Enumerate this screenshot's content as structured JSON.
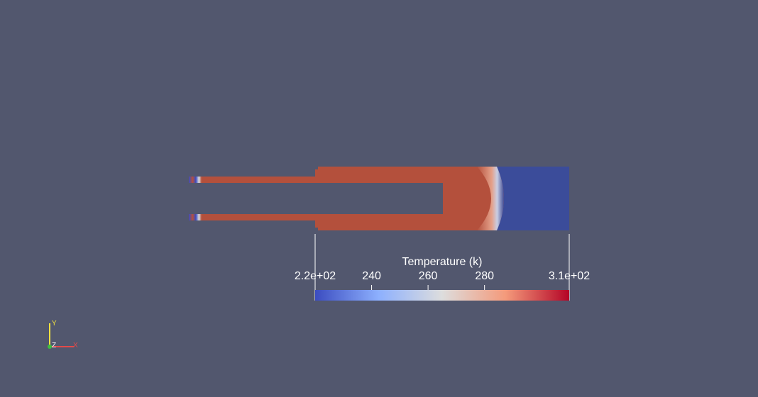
{
  "viewport": {
    "background": "#52576e"
  },
  "model": {
    "hot_color": "#b4503c",
    "cold_color": "#3b4c9a",
    "field": "Temperature (k)"
  },
  "colorbar": {
    "title": "Temperature (k)",
    "min_label": "2.2e+02",
    "max_label": "3.1e+02",
    "tick_labels": [
      "240",
      "260",
      "280"
    ],
    "range": [
      220,
      310
    ],
    "tick_values": [
      240,
      260,
      280
    ],
    "colors": [
      "#3b4cc0",
      "#8db0fe",
      "#dddddd",
      "#f49a7b",
      "#b40426"
    ]
  },
  "orientation_axes": {
    "x_label": "X",
    "y_label": "Y",
    "z_label": "Z",
    "x_color": "#e34a4a",
    "y_color": "#f0e040",
    "z_color": "#3fbf3f"
  }
}
